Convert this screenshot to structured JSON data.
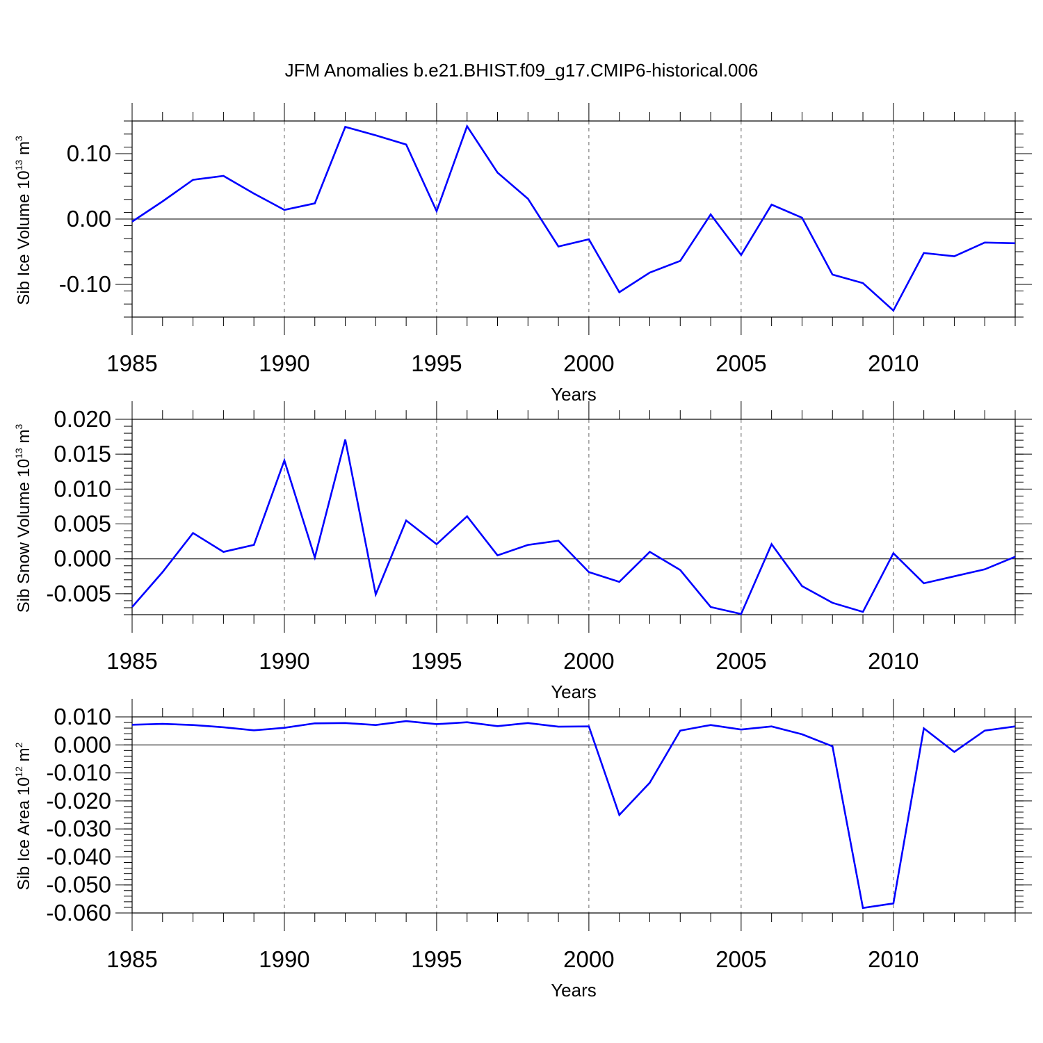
{
  "figure": {
    "title": "JFM Anomalies b.e21.BHIST.f09_g17.CMIP6-historical.006"
  },
  "colors": {
    "series": "#0000ff",
    "axis": "#000000",
    "grid": "#666666"
  },
  "chart_data": [
    {
      "type": "line",
      "id": "ice-volume",
      "ylabel_main": "Sib Ice Volume 10",
      "ylabel_exp": "13",
      "ylabel_unit": " m",
      "ylabel_unit_exp": "3",
      "xlabel": "Years",
      "xlim": [
        1985,
        2014
      ],
      "ylim": [
        -0.15,
        0.15
      ],
      "yticks": [
        -0.1,
        0.0,
        0.1
      ],
      "ytick_labels": [
        "-0.10",
        "0.00",
        "0.10"
      ],
      "yminor_step": 0.02,
      "xticks": [
        1985,
        1990,
        1995,
        2000,
        2005,
        2010
      ],
      "xtick_labels": [
        "1985",
        "1990",
        "1995",
        "2000",
        "2005",
        "2010"
      ],
      "grid_x": [
        1990,
        1995,
        2000,
        2005,
        2010
      ],
      "x": [
        1985,
        1986,
        1987,
        1988,
        1989,
        1990,
        1991,
        1992,
        1993,
        1994,
        1995,
        1996,
        1997,
        1998,
        1999,
        2000,
        2001,
        2002,
        2003,
        2004,
        2005,
        2006,
        2007,
        2008,
        2009,
        2010,
        2011,
        2012,
        2013,
        2014
      ],
      "values": [
        -0.004,
        0.027,
        0.06,
        0.066,
        0.039,
        0.014,
        0.024,
        0.141,
        0.128,
        0.114,
        0.012,
        0.142,
        0.071,
        0.031,
        -0.042,
        -0.031,
        -0.112,
        -0.082,
        -0.064,
        0.007,
        -0.055,
        0.022,
        0.002,
        -0.085,
        -0.098,
        -0.14,
        -0.052,
        -0.057,
        -0.036,
        -0.037
      ]
    },
    {
      "type": "line",
      "id": "snow-volume",
      "ylabel_main": "Sib Snow Volume 10",
      "ylabel_exp": "13",
      "ylabel_unit": " m",
      "ylabel_unit_exp": "3",
      "xlabel": "Years",
      "xlim": [
        1985,
        2014
      ],
      "ylim": [
        -0.008,
        0.02
      ],
      "yticks": [
        -0.005,
        0.0,
        0.005,
        0.01,
        0.015,
        0.02
      ],
      "ytick_labels": [
        "-0.005",
        "0.000",
        "0.005",
        "0.010",
        "0.015",
        "0.020"
      ],
      "yminor_step": 0.001,
      "xticks": [
        1985,
        1990,
        1995,
        2000,
        2005,
        2010
      ],
      "xtick_labels": [
        "1985",
        "1990",
        "1995",
        "2000",
        "2005",
        "2010"
      ],
      "grid_x": [
        1990,
        1995,
        2000,
        2005,
        2010
      ],
      "x": [
        1985,
        1986,
        1987,
        1988,
        1989,
        1990,
        1991,
        1992,
        1993,
        1994,
        1995,
        1996,
        1997,
        1998,
        1999,
        2000,
        2001,
        2002,
        2003,
        2004,
        2005,
        2006,
        2007,
        2008,
        2009,
        2010,
        2011,
        2012,
        2013,
        2014
      ],
      "values": [
        -0.0069,
        -0.0019,
        0.0037,
        0.001,
        0.002,
        0.0141,
        0.0002,
        0.0171,
        -0.0051,
        0.0055,
        0.0021,
        0.0061,
        0.0005,
        0.002,
        0.0026,
        -0.0019,
        -0.0033,
        0.001,
        -0.0016,
        -0.0069,
        -0.0079,
        0.0021,
        -0.0039,
        -0.0063,
        -0.0076,
        0.0008,
        -0.0035,
        -0.0025,
        -0.0015,
        0.0003
      ]
    },
    {
      "type": "line",
      "id": "ice-area",
      "ylabel_main": "Sib Ice Area 10",
      "ylabel_exp": "12",
      "ylabel_unit": " m",
      "ylabel_unit_exp": "2",
      "xlabel": "Years",
      "xlim": [
        1985,
        2014
      ],
      "ylim": [
        -0.06,
        0.01
      ],
      "yticks": [
        -0.06,
        -0.05,
        -0.04,
        -0.03,
        -0.02,
        -0.01,
        0.0,
        0.01
      ],
      "ytick_labels": [
        "-0.060",
        "-0.050",
        "-0.040",
        "-0.030",
        "-0.020",
        "-0.010",
        "0.000",
        "0.010"
      ],
      "yminor_step": 0.002,
      "xticks": [
        1985,
        1990,
        1995,
        2000,
        2005,
        2010
      ],
      "xtick_labels": [
        "1985",
        "1990",
        "1995",
        "2000",
        "2005",
        "2010"
      ],
      "grid_x": [
        1990,
        1995,
        2000,
        2005,
        2010
      ],
      "x": [
        1985,
        1986,
        1987,
        1988,
        1989,
        1990,
        1991,
        1992,
        1993,
        1994,
        1995,
        1996,
        1997,
        1998,
        1999,
        2000,
        2001,
        2002,
        2003,
        2004,
        2005,
        2006,
        2007,
        2008,
        2009,
        2010,
        2011,
        2012,
        2013,
        2014
      ],
      "values": [
        0.0072,
        0.0075,
        0.0071,
        0.0063,
        0.0052,
        0.0061,
        0.0077,
        0.0078,
        0.0071,
        0.0085,
        0.0074,
        0.0081,
        0.0067,
        0.0078,
        0.0065,
        0.0066,
        -0.025,
        -0.0135,
        0.0051,
        0.0071,
        0.0055,
        0.0066,
        0.0038,
        -0.0005,
        -0.0582,
        -0.0566,
        0.0059,
        -0.0025,
        0.0051,
        0.0066
      ]
    }
  ]
}
